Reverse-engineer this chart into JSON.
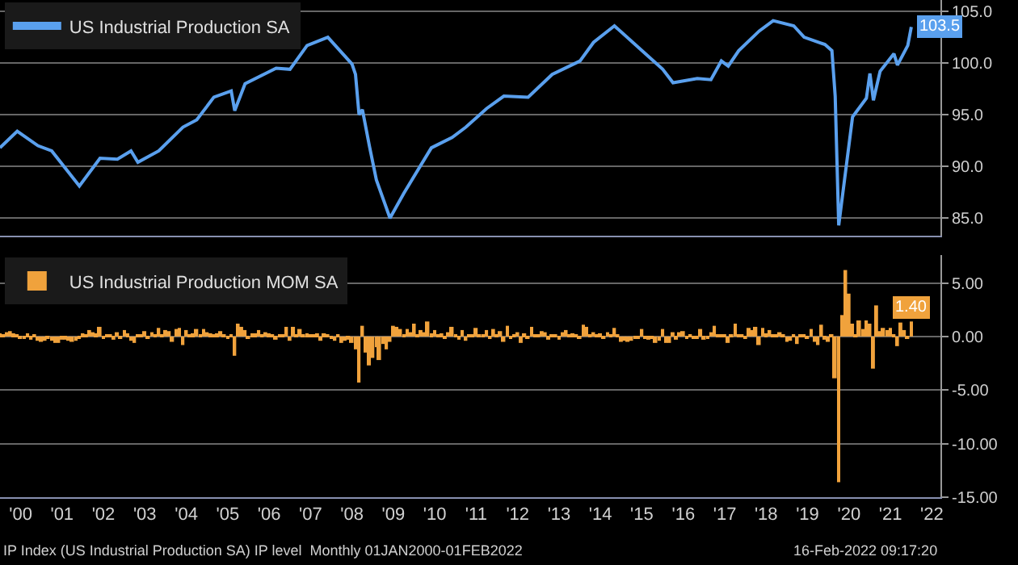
{
  "chart_data": [
    {
      "type": "line",
      "x": [
        "2000-01",
        "2000-06",
        "2000-12",
        "2001-04",
        "2001-12",
        "2002-06",
        "2002-11",
        "2003-03",
        "2003-05",
        "2003-11",
        "2004-06",
        "2004-10",
        "2005-03",
        "2005-08",
        "2005-09",
        "2005-12",
        "2006-09",
        "2007-01",
        "2007-06",
        "2007-12",
        "2008-07",
        "2008-08",
        "2008-09",
        "2008-10",
        "2008-12",
        "2009-02",
        "2009-06",
        "2009-10",
        "2010-06",
        "2010-12",
        "2011-04",
        "2011-10",
        "2012-03",
        "2012-10",
        "2013-05",
        "2014-01",
        "2014-05",
        "2014-11",
        "2015-08",
        "2016-01",
        "2016-04",
        "2016-11",
        "2017-03",
        "2017-06",
        "2017-08",
        "2017-11",
        "2018-05",
        "2018-09",
        "2019-03",
        "2019-06",
        "2019-12",
        "2020-02",
        "2020-03",
        "2020-04",
        "2020-08",
        "2020-12",
        "2021-01",
        "2021-02",
        "2021-04",
        "2021-08",
        "2021-09",
        "2021-12",
        "2022-01"
      ],
      "series": [
        {
          "name": "US Industrial Production SA",
          "color": "#5aa0ee",
          "values": [
            91.8,
            93.4,
            92.0,
            91.5,
            88.1,
            90.8,
            90.7,
            91.5,
            90.4,
            91.5,
            93.8,
            94.5,
            96.7,
            97.3,
            95.4,
            98.0,
            99.5,
            99.4,
            101.7,
            102.5,
            99.9,
            98.9,
            95.0,
            95.5,
            92.0,
            88.7,
            85.0,
            87.4,
            91.8,
            92.8,
            93.8,
            95.6,
            96.8,
            96.7,
            98.9,
            100.2,
            102.0,
            103.6,
            100.9,
            99.4,
            98.1,
            98.5,
            98.4,
            100.2,
            99.7,
            101.2,
            103.1,
            104.1,
            103.6,
            102.5,
            101.8,
            101.2,
            96.8,
            84.3,
            94.8,
            96.6,
            99.0,
            96.4,
            99.2,
            100.9,
            99.8,
            101.7,
            103.5
          ],
          "value_labels": [
            null,
            null,
            null,
            null,
            null,
            null,
            null,
            null,
            null,
            null,
            null,
            null,
            null,
            null,
            null,
            null,
            null,
            null,
            null,
            null,
            null,
            null,
            null,
            null,
            null,
            null,
            null,
            null,
            null,
            null,
            null,
            null,
            null,
            null,
            null,
            null,
            null,
            null,
            null,
            null,
            null,
            null,
            null,
            null,
            null,
            null,
            null,
            null,
            null,
            null,
            null,
            null,
            null,
            null,
            null,
            null,
            null,
            null,
            null,
            null,
            null,
            null,
            "103.5"
          ]
        }
      ],
      "xlim": [
        "2000-01-01",
        "2022-09-15"
      ],
      "ylim": [
        83.3,
        106.1
      ],
      "yticks": [
        {
          "value": 85,
          "label": "85.0"
        },
        {
          "value": 90,
          "label": "90.0"
        },
        {
          "value": 95,
          "label": "95.0"
        },
        {
          "value": 100,
          "label": "100.0"
        },
        {
          "value": 105,
          "label": "105.0"
        }
      ],
      "tick_labels": "y",
      "grid": "y",
      "legend": "top left",
      "marker": "none",
      "line_style": "solid"
    },
    {
      "type": "bar",
      "x": [
        "2000-01",
        "2000-02",
        "2000-03",
        "2000-04",
        "2000-05",
        "2000-06",
        "2000-07",
        "2000-08",
        "2000-09",
        "2000-10",
        "2000-11",
        "2000-12",
        "2001-01",
        "2001-02",
        "2001-03",
        "2001-04",
        "2001-05",
        "2001-06",
        "2001-07",
        "2001-08",
        "2001-09",
        "2001-10",
        "2001-11",
        "2001-12",
        "2002-01",
        "2002-02",
        "2002-03",
        "2002-04",
        "2002-05",
        "2002-06",
        "2002-07",
        "2002-08",
        "2002-09",
        "2002-10",
        "2002-11",
        "2002-12",
        "2003-01",
        "2003-02",
        "2003-03",
        "2003-04",
        "2003-05",
        "2003-06",
        "2003-07",
        "2003-08",
        "2003-09",
        "2003-10",
        "2003-11",
        "2003-12",
        "2004-01",
        "2004-02",
        "2004-03",
        "2004-04",
        "2004-05",
        "2004-06",
        "2004-07",
        "2004-08",
        "2004-09",
        "2004-10",
        "2004-11",
        "2004-12",
        "2005-01",
        "2005-02",
        "2005-03",
        "2005-04",
        "2005-05",
        "2005-06",
        "2005-07",
        "2005-08",
        "2005-09",
        "2005-10",
        "2005-11",
        "2005-12",
        "2006-01",
        "2006-02",
        "2006-03",
        "2006-04",
        "2006-05",
        "2006-06",
        "2006-07",
        "2006-08",
        "2006-09",
        "2006-10",
        "2006-11",
        "2006-12",
        "2007-01",
        "2007-02",
        "2007-03",
        "2007-04",
        "2007-05",
        "2007-06",
        "2007-07",
        "2007-08",
        "2007-09",
        "2007-10",
        "2007-11",
        "2007-12",
        "2008-01",
        "2008-02",
        "2008-03",
        "2008-04",
        "2008-05",
        "2008-06",
        "2008-07",
        "2008-08",
        "2008-09",
        "2008-10",
        "2008-11",
        "2008-12",
        "2009-01",
        "2009-02",
        "2009-03",
        "2009-04",
        "2009-05",
        "2009-06",
        "2009-07",
        "2009-08",
        "2009-09",
        "2009-10",
        "2009-11",
        "2009-12",
        "2010-01",
        "2010-02",
        "2010-03",
        "2010-04",
        "2010-05",
        "2010-06",
        "2010-07",
        "2010-08",
        "2010-09",
        "2010-10",
        "2010-11",
        "2010-12",
        "2011-01",
        "2011-02",
        "2011-03",
        "2011-04",
        "2011-05",
        "2011-06",
        "2011-07",
        "2011-08",
        "2011-09",
        "2011-10",
        "2011-11",
        "2011-12",
        "2012-01",
        "2012-02",
        "2012-03",
        "2012-04",
        "2012-05",
        "2012-06",
        "2012-07",
        "2012-08",
        "2012-09",
        "2012-10",
        "2012-11",
        "2012-12",
        "2013-01",
        "2013-02",
        "2013-03",
        "2013-04",
        "2013-05",
        "2013-06",
        "2013-07",
        "2013-08",
        "2013-09",
        "2013-10",
        "2013-11",
        "2013-12",
        "2014-01",
        "2014-02",
        "2014-03",
        "2014-04",
        "2014-05",
        "2014-06",
        "2014-07",
        "2014-08",
        "2014-09",
        "2014-10",
        "2014-11",
        "2014-12",
        "2015-01",
        "2015-02",
        "2015-03",
        "2015-04",
        "2015-05",
        "2015-06",
        "2015-07",
        "2015-08",
        "2015-09",
        "2015-10",
        "2015-11",
        "2015-12",
        "2016-01",
        "2016-02",
        "2016-03",
        "2016-04",
        "2016-05",
        "2016-06",
        "2016-07",
        "2016-08",
        "2016-09",
        "2016-10",
        "2016-11",
        "2016-12",
        "2017-01",
        "2017-02",
        "2017-03",
        "2017-04",
        "2017-05",
        "2017-06",
        "2017-07",
        "2017-08",
        "2017-09",
        "2017-10",
        "2017-11",
        "2017-12",
        "2018-01",
        "2018-02",
        "2018-03",
        "2018-04",
        "2018-05",
        "2018-06",
        "2018-07",
        "2018-08",
        "2018-09",
        "2018-10",
        "2018-11",
        "2018-12",
        "2019-01",
        "2019-02",
        "2019-03",
        "2019-04",
        "2019-05",
        "2019-06",
        "2019-07",
        "2019-08",
        "2019-09",
        "2019-10",
        "2019-11",
        "2019-12",
        "2020-01",
        "2020-02",
        "2020-03",
        "2020-04",
        "2020-05",
        "2020-06",
        "2020-07",
        "2020-08",
        "2020-09",
        "2020-10",
        "2020-11",
        "2020-12",
        "2021-01",
        "2021-02",
        "2021-03",
        "2021-04",
        "2021-05",
        "2021-06",
        "2021-07",
        "2021-08",
        "2021-09",
        "2021-10",
        "2021-11",
        "2021-12",
        "2022-01"
      ],
      "series": [
        {
          "name": "US Industrial Production MOM SA",
          "color": "#f0a23c",
          "values": [
            0.3,
            0.2,
            0.4,
            0.5,
            0.3,
            0.1,
            -0.1,
            -0.2,
            0.3,
            -0.3,
            0.1,
            -0.4,
            -0.5,
            -0.4,
            -0.2,
            -0.4,
            -0.6,
            -0.6,
            -0.3,
            -0.3,
            -0.4,
            -0.5,
            -0.4,
            -0.2,
            0.3,
            0.2,
            0.6,
            0.4,
            0.3,
            0.9,
            -0.1,
            0.2,
            0.1,
            -0.3,
            0.4,
            -0.2,
            0.6,
            0.3,
            -0.4,
            -0.6,
            0.1,
            0.2,
            0.5,
            -0.1,
            0.4,
            0.2,
            0.8,
            0.1,
            0.6,
            0.5,
            -0.5,
            0.7,
            0.8,
            -0.8,
            0.6,
            0.2,
            0.3,
            0.7,
            0.2,
            0.7,
            0.4,
            0.3,
            0.2,
            0.3,
            0.5,
            0.2,
            -0.1,
            0.2,
            -1.8,
            1.2,
            0.9,
            0.6,
            -0.2,
            0.3,
            0.3,
            0.6,
            0.2,
            0.4,
            0.3,
            0.2,
            -0.3,
            0.1,
            0.2,
            0.9,
            -0.4,
            0.9,
            0.2,
            0.7,
            0.1,
            0.3,
            0.1,
            0.2,
            0.3,
            -0.4,
            0.3,
            0.1,
            -0.2,
            -0.4,
            0.1,
            -0.6,
            -0.4,
            -0.3,
            -0.6,
            -1.2,
            -4.3,
            1.0,
            -1.5,
            -2.7,
            -2.0,
            -1.0,
            -2.2,
            -0.7,
            -1.2,
            -0.5,
            1.0,
            0.9,
            0.7,
            0.2,
            0.7,
            0.4,
            1.2,
            0.2,
            0.6,
            0.4,
            1.4,
            0.3,
            0.6,
            0.2,
            0.3,
            -0.2,
            0.4,
            0.9,
            0.1,
            -0.3,
            0.6,
            -0.4,
            0.2,
            0.1,
            0.8,
            0.1,
            0.1,
            0.6,
            -0.2,
            0.7,
            0.1,
            0.5,
            -0.5,
            1.0,
            -0.2,
            0.2,
            0.4,
            -0.6,
            0.3,
            -0.1,
            0.9,
            0.2,
            0.1,
            0.5,
            0.4,
            -0.3,
            0.1,
            0.1,
            -0.3,
            0.4,
            0.6,
            0.1,
            0.3,
            0.2,
            -0.2,
            1.1,
            0.9,
            0.1,
            0.4,
            0.2,
            0.3,
            -0.1,
            0.4,
            0.1,
            0.8,
            0.1,
            -0.5,
            -0.4,
            -0.5,
            -0.4,
            -0.2,
            -0.2,
            0.7,
            -0.1,
            -0.3,
            -0.2,
            -0.6,
            -0.4,
            0.7,
            -0.6,
            -0.6,
            0.4,
            -0.3,
            0.4,
            0.5,
            -0.2,
            0.1,
            -0.1,
            -0.2,
            0.7,
            -0.3,
            -0.2,
            0.4,
            1.0,
            0.1,
            0.1,
            0.1,
            -0.6,
            0.1,
            1.2,
            0.2,
            0.2,
            -0.2,
            0.8,
            0.6,
            0.9,
            -0.8,
            0.8,
            0.3,
            0.6,
            0.2,
            0.1,
            0.4,
            0.1,
            -0.5,
            -0.4,
            0.2,
            -0.7,
            0.2,
            0.1,
            -0.2,
            0.7,
            -0.5,
            -0.8,
            1.1,
            -0.3,
            -0.5,
            0.1,
            -3.9,
            -13.6,
            2.0,
            6.2,
            4.0,
            1.2,
            0.2,
            1.5,
            0.7,
            1.5,
            1.2,
            -3.0,
            2.9,
            0.5,
            0.8,
            0.6,
            0.8,
            0.2,
            -0.9,
            1.3,
            0.6,
            -0.1,
            1.4
          ],
          "value_labels": [
            null,
            null,
            null,
            null,
            null,
            null,
            null,
            null,
            null,
            null,
            null,
            null,
            null,
            null,
            null,
            null,
            null,
            null,
            null,
            null,
            null,
            null,
            null,
            null,
            null,
            null,
            null,
            null,
            null,
            null,
            null,
            null,
            null,
            null,
            null,
            null,
            null,
            null,
            null,
            null,
            null,
            null,
            null,
            null,
            null,
            null,
            null,
            null,
            null,
            null,
            null,
            null,
            null,
            null,
            null,
            null,
            null,
            null,
            null,
            null,
            null,
            null,
            null,
            null,
            null,
            null,
            null,
            null,
            null,
            null,
            null,
            null,
            null,
            null,
            null,
            null,
            null,
            null,
            null,
            null,
            null,
            null,
            null,
            null,
            null,
            null,
            null,
            null,
            null,
            null,
            null,
            null,
            null,
            null,
            null,
            null,
            null,
            null,
            null,
            null,
            null,
            null,
            null,
            null,
            null,
            null,
            null,
            null,
            null,
            null,
            null,
            null,
            null,
            null,
            null,
            null,
            null,
            null,
            null,
            null,
            null,
            null,
            null,
            null,
            null,
            null,
            null,
            null,
            null,
            null,
            null,
            null,
            null,
            null,
            null,
            null,
            null,
            null,
            null,
            null,
            null,
            null,
            null,
            null,
            null,
            null,
            null,
            null,
            null,
            null,
            null,
            null,
            null,
            null,
            null,
            null,
            null,
            null,
            null,
            null,
            null,
            null,
            null,
            null,
            null,
            null,
            null,
            null,
            null,
            null,
            null,
            null,
            null,
            null,
            null,
            null,
            null,
            null,
            null,
            null,
            null,
            null,
            null,
            null,
            null,
            null,
            null,
            null,
            null,
            null,
            null,
            null,
            null,
            null,
            null,
            null,
            null,
            null,
            null,
            null,
            null,
            null,
            null,
            null,
            null,
            null,
            null,
            null,
            null,
            null,
            null,
            null,
            null,
            null,
            null,
            null,
            null,
            null,
            null,
            null,
            null,
            null,
            null,
            null,
            null,
            null,
            null,
            null,
            null,
            null,
            null,
            null,
            null,
            null,
            null,
            null,
            null,
            null,
            null,
            null,
            null,
            null,
            null,
            null,
            null,
            null,
            null,
            null,
            null,
            null,
            null,
            null,
            null,
            null,
            null,
            null,
            null,
            null,
            null,
            null,
            null,
            null,
            null,
            null,
            "1.40"
          ]
        }
      ],
      "xlim": [
        "2000-01-01",
        "2022-09-15"
      ],
      "xticks": [
        {
          "value": "2000-07-01",
          "label": "'00"
        },
        {
          "value": "2001-07-01",
          "label": "'01"
        },
        {
          "value": "2002-07-01",
          "label": "'02"
        },
        {
          "value": "2003-07-01",
          "label": "'03"
        },
        {
          "value": "2004-07-01",
          "label": "'04"
        },
        {
          "value": "2005-07-01",
          "label": "'05"
        },
        {
          "value": "2006-07-01",
          "label": "'06"
        },
        {
          "value": "2007-07-01",
          "label": "'07"
        },
        {
          "value": "2008-07-01",
          "label": "'08"
        },
        {
          "value": "2009-07-01",
          "label": "'09"
        },
        {
          "value": "2010-07-01",
          "label": "'10"
        },
        {
          "value": "2011-07-01",
          "label": "'11"
        },
        {
          "value": "2012-07-01",
          "label": "'12"
        },
        {
          "value": "2013-07-01",
          "label": "'13"
        },
        {
          "value": "2014-07-01",
          "label": "'14"
        },
        {
          "value": "2015-07-01",
          "label": "'15"
        },
        {
          "value": "2016-07-01",
          "label": "'16"
        },
        {
          "value": "2017-07-01",
          "label": "'17"
        },
        {
          "value": "2018-07-01",
          "label": "'18"
        },
        {
          "value": "2019-07-01",
          "label": "'19"
        },
        {
          "value": "2020-07-01",
          "label": "'20"
        },
        {
          "value": "2021-07-01",
          "label": "'21"
        },
        {
          "value": "2022-07-01",
          "label": "'22"
        }
      ],
      "ylim": [
        -15,
        7.6
      ],
      "yticks": [
        {
          "value": -15,
          "label": "-15.00"
        },
        {
          "value": -10,
          "label": "-10.00"
        },
        {
          "value": -5,
          "label": "-5.00"
        },
        {
          "value": 0,
          "label": "0.00"
        },
        {
          "value": 5,
          "label": "5.00"
        }
      ],
      "grid": "y",
      "legend": "top left",
      "annotations": [
        "IP Index (US Industrial Production SA) IP level  Monthly 01JAN2000-01FEB2022",
        "16-Feb-2022 09:17:20"
      ]
    }
  ]
}
